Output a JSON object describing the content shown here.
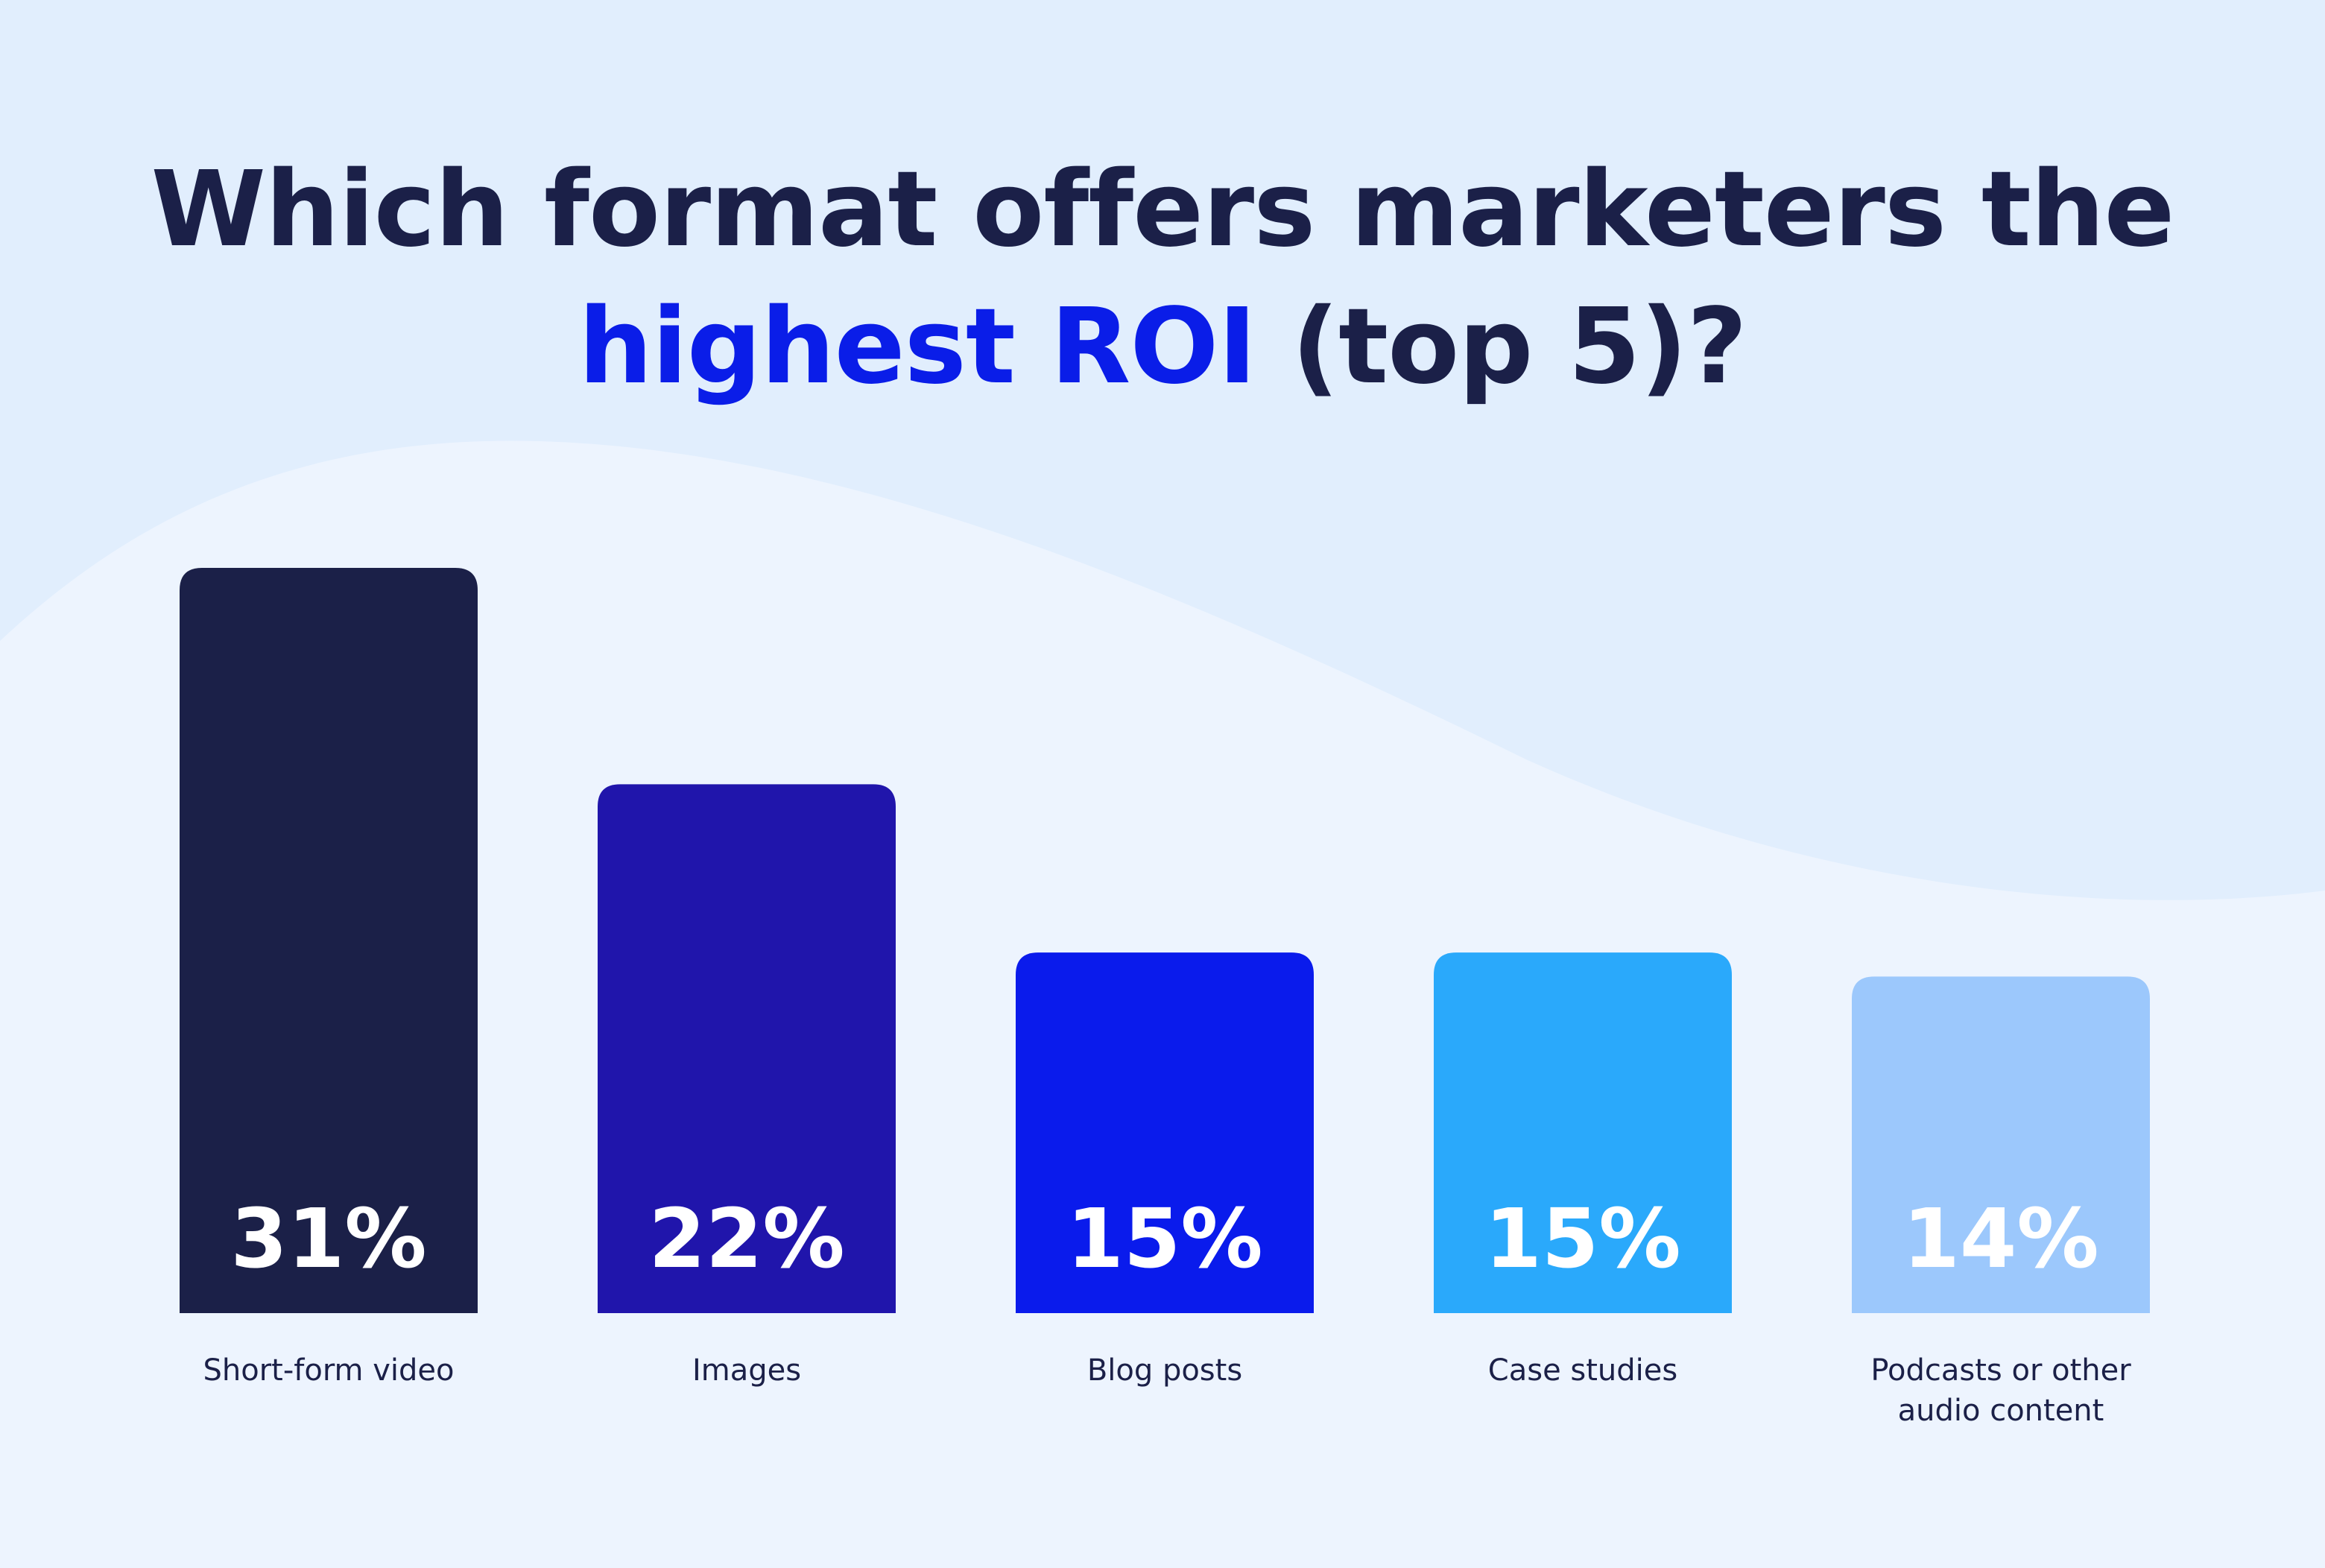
{
  "title": {
    "line1": "Which format offers marketers the",
    "accent": "highest ROI",
    "rest": "(top 5)?"
  },
  "colors": {
    "background": "#edf4fe",
    "wave": "#e1eefd",
    "title": "#1b2048",
    "accent": "#0a1de8",
    "label": "#1b2048",
    "value_text": "#ffffff"
  },
  "chart_data": {
    "type": "bar",
    "categories": [
      [
        "Short-form video"
      ],
      [
        "Images"
      ],
      [
        "Blog posts"
      ],
      [
        "Case studies"
      ],
      [
        "Podcasts or other",
        "audio content"
      ]
    ],
    "values": [
      31,
      22,
      15,
      15,
      14
    ],
    "value_labels": [
      "31%",
      "22%",
      "15%",
      "15%",
      "14%"
    ],
    "bar_colors": [
      "#1b2048",
      "#2015ab",
      "#0a1bec",
      "#2aa9fb",
      "#9cc8fc"
    ],
    "ylim": [
      0,
      31
    ],
    "grid": false,
    "legend": "none"
  }
}
